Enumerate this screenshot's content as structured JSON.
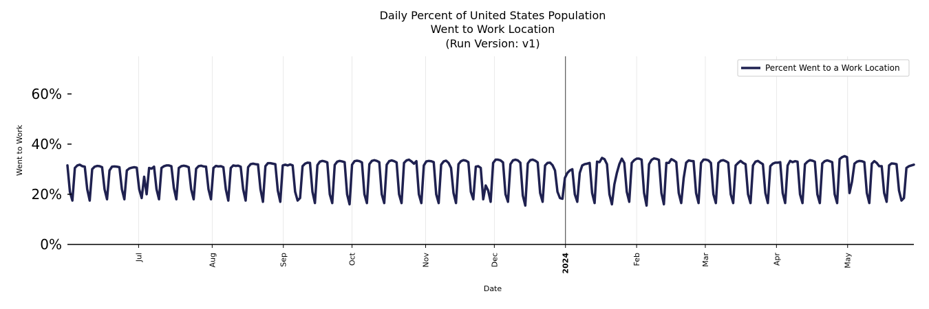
{
  "chart_data": {
    "type": "line",
    "title": [
      "Daily Percent of United States Population",
      "Went to Work Location",
      "(Run Version: v1)"
    ],
    "xlabel": "Date",
    "ylabel": "Went to Work",
    "ylim": [
      0,
      75
    ],
    "y_ticks": [
      {
        "value": 0,
        "label": "0%"
      },
      {
        "value": 20,
        "label": "20%"
      },
      {
        "value": 40,
        "label": "40%"
      },
      {
        "value": 60,
        "label": "60%"
      }
    ],
    "x_range_days": [
      0,
      345
    ],
    "x_ticks": [
      {
        "day": 29,
        "label": "Jul",
        "bold": false
      },
      {
        "day": 59,
        "label": "Aug",
        "bold": false
      },
      {
        "day": 88,
        "label": "Sep",
        "bold": false
      },
      {
        "day": 116,
        "label": "Oct",
        "bold": false
      },
      {
        "day": 146,
        "label": "Nov",
        "bold": false
      },
      {
        "day": 174,
        "label": "Dec",
        "bold": false
      },
      {
        "day": 203,
        "label": "2024",
        "bold": true
      },
      {
        "day": 232,
        "label": "Feb",
        "bold": false
      },
      {
        "day": 260,
        "label": "Mar",
        "bold": false
      },
      {
        "day": 289,
        "label": "Apr",
        "bold": false
      },
      {
        "day": 318,
        "label": "May",
        "bold": false
      }
    ],
    "year_marker_day": 203,
    "grid": "vertical",
    "legend": {
      "position": "top-right",
      "entries": [
        "Percent Went to a Work Location"
      ]
    },
    "series": [
      {
        "name": "Percent Went to a Work Location",
        "color": "#1f2150",
        "values": [
          31.5,
          21,
          17.5,
          30.5,
          31.5,
          31.8,
          31.2,
          31,
          22,
          17.5,
          30,
          31,
          31.3,
          31.2,
          30.8,
          22,
          18,
          29.5,
          31,
          31.1,
          31,
          30.8,
          22,
          18,
          29.5,
          30.3,
          30.6,
          30.8,
          30.6,
          22,
          18.5,
          27,
          20,
          30.5,
          30.2,
          31,
          22,
          18,
          30.5,
          31.2,
          31.5,
          31.5,
          31.2,
          22.5,
          18,
          30.5,
          31.2,
          31.4,
          31.2,
          30.8,
          22,
          18,
          30.2,
          31.2,
          31.4,
          31.1,
          31,
          22,
          18,
          30.5,
          31.3,
          31.1,
          31.2,
          30.8,
          22,
          17.5,
          30.5,
          31.5,
          31.3,
          31.4,
          31,
          22,
          17.5,
          30.8,
          32,
          32.2,
          32,
          31.9,
          22,
          17,
          31.2,
          32.4,
          32.4,
          32.2,
          32,
          21.5,
          17,
          31.5,
          31.8,
          31.5,
          31.9,
          31.5,
          21,
          17.5,
          18.5,
          31.2,
          32.2,
          32.6,
          32.5,
          21,
          16.5,
          31.6,
          33,
          33.3,
          33.1,
          32.7,
          20,
          16.5,
          31.7,
          33,
          33.3,
          33.1,
          32.8,
          20,
          16,
          31.8,
          33.2,
          33.4,
          33.2,
          32.7,
          20,
          16.5,
          32,
          33.3,
          33.6,
          33.3,
          32.8,
          20,
          16.5,
          31.8,
          33.2,
          33.5,
          33.2,
          32.7,
          20,
          16.5,
          32.5,
          33.5,
          33.8,
          33.1,
          32.2,
          33.2,
          20,
          16.5,
          31.5,
          33.1,
          33.3,
          33.2,
          32.8,
          20,
          16.5,
          31.8,
          33.1,
          33.4,
          32.5,
          30.5,
          20.5,
          16.5,
          32,
          33.2,
          33.6,
          33.4,
          32.8,
          21,
          18,
          31,
          31.2,
          30.5,
          18,
          23.5,
          21.5,
          17,
          32.5,
          33.8,
          33.8,
          33.5,
          32.7,
          20,
          17,
          32,
          33.5,
          33.8,
          33.5,
          32.6,
          19.5,
          15.5,
          32.3,
          33.6,
          33.8,
          33.4,
          32.7,
          20.5,
          17,
          31.5,
          32.5,
          32.6,
          31.6,
          29.5,
          21,
          18.5,
          18.2,
          26.5,
          28.5,
          29.5,
          30,
          20,
          17,
          28.5,
          31.5,
          32,
          32.2,
          32.5,
          20.5,
          16.5,
          33,
          32.8,
          34.5,
          34,
          32,
          20,
          16,
          24,
          28.5,
          32,
          34.2,
          32.5,
          21,
          17,
          32.5,
          33.6,
          34.2,
          34.2,
          33.8,
          20.5,
          15.5,
          32,
          33.7,
          34.3,
          34.1,
          33.7,
          20.5,
          16,
          32.5,
          32.5,
          34,
          33.5,
          32.8,
          20.5,
          16.5,
          26.5,
          32.6,
          33.5,
          33.3,
          33.2,
          20.5,
          16.5,
          32.5,
          33.8,
          33.8,
          33.5,
          32.5,
          20,
          16.5,
          32.5,
          33.4,
          33.6,
          33.2,
          32.6,
          20,
          16.5,
          31.5,
          32.5,
          33.3,
          32.5,
          32,
          20,
          16.5,
          31.5,
          33,
          33.3,
          32.6,
          32,
          20.5,
          16.5,
          31.2,
          32.2,
          32.6,
          32.6,
          32.8,
          20.5,
          16.5,
          31.5,
          33.3,
          32.8,
          33.2,
          33,
          20,
          16.5,
          32,
          33,
          33.6,
          33.4,
          33,
          20,
          16.5,
          32.3,
          33.2,
          33.5,
          33.2,
          32.8,
          20,
          16.5,
          34,
          34.8,
          35.2,
          34.8,
          20.5,
          25,
          32.2,
          33,
          33.3,
          33.2,
          32.8,
          20.5,
          16.5,
          32.2,
          33.2,
          32.5,
          31.2,
          31.2,
          20.5,
          17,
          31.5,
          32.3,
          32.2,
          32,
          21.5,
          17.5,
          18.5,
          30.5,
          31.2,
          31.5,
          31.8
        ]
      }
    ]
  }
}
